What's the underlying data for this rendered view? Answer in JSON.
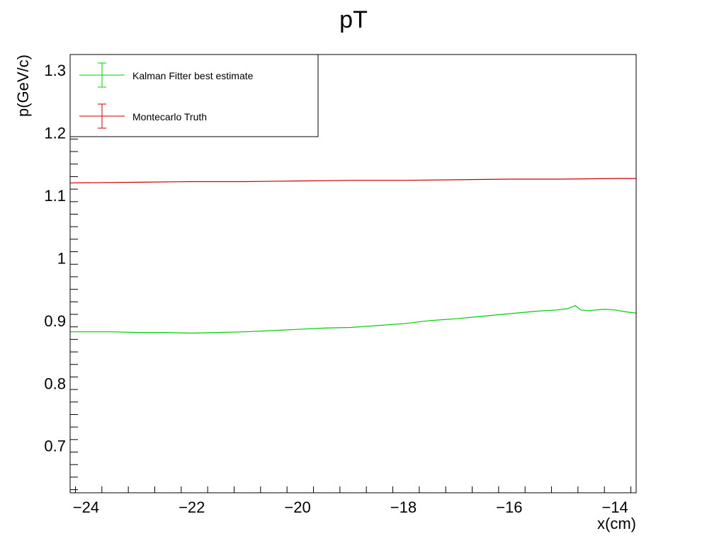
{
  "chart_data": {
    "type": "line",
    "title": "pT",
    "xlabel": "x(cm)",
    "ylabel": "p(GeV/c)",
    "xlim": [
      -24.3,
      -13.6
    ],
    "ylim": [
      0.625,
      1.325
    ],
    "x_ticks": [
      -24,
      -22,
      -20,
      -18,
      -16,
      -14
    ],
    "x_tick_labels": [
      "−24",
      "−22",
      "−20",
      "−18",
      "−16",
      "−14"
    ],
    "y_ticks": [
      0.7,
      0.8,
      0.9,
      1.0,
      1.1,
      1.2,
      1.3
    ],
    "y_tick_labels": [
      "0.7",
      "0.8",
      "0.9",
      "1",
      "1.1",
      "1.2",
      "1.3"
    ],
    "grid": false,
    "legend_position": "top-left",
    "series": [
      {
        "name": "Kalman Fitter best estimate",
        "color": "#00cc00",
        "x": [
          -24.3,
          -24.0,
          -23.5,
          -23.0,
          -22.5,
          -22.0,
          -21.5,
          -21.0,
          -20.5,
          -20.0,
          -19.5,
          -19.0,
          -18.5,
          -18.0,
          -17.5,
          -17.0,
          -16.5,
          -16.0,
          -15.5,
          -15.1,
          -14.9,
          -14.75,
          -14.65,
          -14.5,
          -14.2,
          -14.0,
          -13.8,
          -13.6
        ],
        "values": [
          0.882,
          0.882,
          0.882,
          0.881,
          0.881,
          0.88,
          0.881,
          0.882,
          0.884,
          0.886,
          0.888,
          0.889,
          0.892,
          0.895,
          0.9,
          0.903,
          0.907,
          0.911,
          0.915,
          0.917,
          0.919,
          0.924,
          0.917,
          0.916,
          0.918,
          0.917,
          0.914,
          0.912
        ]
      },
      {
        "name": "Montecarlo Truth",
        "color": "#cc0000",
        "x": [
          -24.3,
          -23.0,
          -22.0,
          -21.0,
          -20.0,
          -19.0,
          -18.0,
          -17.0,
          -16.0,
          -15.0,
          -14.0,
          -13.6
        ],
        "values": [
          1.12,
          1.121,
          1.122,
          1.122,
          1.123,
          1.124,
          1.124,
          1.125,
          1.126,
          1.126,
          1.127,
          1.127
        ]
      }
    ]
  }
}
